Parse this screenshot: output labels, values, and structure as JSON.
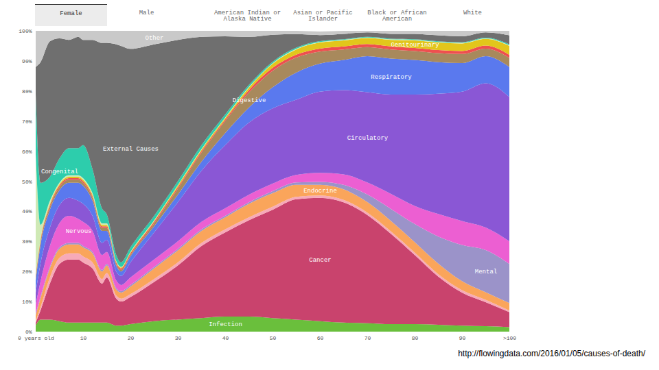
{
  "tabs": {
    "items": [
      "Female",
      "Male",
      "American Indian or Alaska Native",
      "Asian or Pacific Islander",
      "Black or African American",
      "White"
    ],
    "active": "Female"
  },
  "chart_data": {
    "type": "area",
    "stacked": true,
    "x": [
      0,
      1,
      3,
      5,
      7,
      9,
      10,
      12,
      14,
      15,
      17,
      18,
      20,
      25,
      30,
      35,
      40,
      45,
      50,
      55,
      60,
      65,
      70,
      75,
      80,
      85,
      90,
      95,
      100
    ],
    "xlim": [
      0,
      100
    ],
    "xticks": [
      {
        "value": 0,
        "label": "0 years old"
      },
      10,
      20,
      30,
      40,
      50,
      60,
      70,
      80,
      90,
      {
        "value": 100,
        "label": ">100"
      }
    ],
    "ylim": [
      0,
      100
    ],
    "yticks": [
      {
        "value": 0,
        "label": "0%"
      },
      {
        "value": 10,
        "label": "10%"
      },
      {
        "value": 20,
        "label": "20%"
      },
      {
        "value": 30,
        "label": "30%"
      },
      {
        "value": 40,
        "label": "40%"
      },
      {
        "value": 50,
        "label": "50%"
      },
      {
        "value": 60,
        "label": "60%"
      },
      {
        "value": 70,
        "label": "70%"
      },
      {
        "value": 80,
        "label": "80%"
      },
      {
        "value": 90,
        "label": "90%"
      },
      {
        "value": 100,
        "label": "100%"
      }
    ],
    "series": [
      {
        "name": "Infection",
        "color": "#6abf3c",
        "values": [
          2,
          4,
          4,
          3.5,
          3,
          3,
          3,
          3,
          3,
          3,
          2,
          2,
          2.5,
          3.5,
          4,
          4.5,
          5,
          5,
          4.5,
          4,
          3.5,
          3,
          2.8,
          2.5,
          2.5,
          2.3,
          2,
          1.8,
          1.5
        ]
      },
      {
        "name": "Cancer",
        "color": "#c9436d",
        "values": [
          1,
          3,
          12,
          19,
          21,
          21,
          20,
          18,
          13,
          15,
          9,
          8,
          9,
          13,
          18,
          24,
          28,
          32,
          36,
          40,
          41,
          40,
          36,
          30,
          23,
          16,
          11,
          8,
          5
        ]
      },
      {
        "name": null,
        "color": "#f7aab8",
        "values": [
          0.5,
          1,
          2,
          2,
          2,
          2,
          2,
          2,
          1.5,
          1.5,
          1,
          1,
          1,
          1,
          1,
          1,
          1,
          1,
          1,
          0.8,
          0.8,
          0.8,
          0.8,
          0.8,
          0.8,
          0.8,
          0.8,
          0.8,
          0.5
        ]
      },
      {
        "name": "Endocrine",
        "color": "#faa55b",
        "values": [
          2,
          3,
          3,
          3,
          3,
          3,
          3,
          3,
          2.5,
          2.5,
          2,
          2,
          2.5,
          3.5,
          4,
          4,
          4,
          4.5,
          4.5,
          4,
          3.5,
          3.5,
          3.5,
          3.5,
          3.5,
          3.5,
          3,
          2.5,
          2.5
        ]
      },
      {
        "name": "Mental",
        "color": "#9b93c9",
        "values": [
          0.5,
          0.5,
          0.5,
          0.5,
          0.5,
          0.5,
          0.5,
          0.5,
          0.5,
          0.5,
          0.5,
          0.5,
          0.5,
          0.5,
          0.5,
          0.5,
          0.5,
          0.5,
          0.7,
          0.8,
          1,
          1.5,
          2.5,
          4,
          6,
          9,
          12,
          14,
          13
        ]
      },
      {
        "name": "Nervous",
        "color": "#ec5fd2",
        "values": [
          3,
          5,
          7,
          8,
          9,
          8,
          8,
          7,
          5,
          4,
          2.5,
          2,
          2.5,
          2.5,
          2.5,
          2.5,
          2.5,
          2.5,
          2.5,
          2.5,
          3,
          3.5,
          4,
          5,
          6,
          7.5,
          8,
          7.5,
          7.5
        ]
      },
      {
        "name": "Circulatory",
        "color": "#8a57d5",
        "values": [
          4,
          6,
          6,
          6,
          6,
          6,
          6,
          5,
          4,
          4,
          3,
          3,
          5,
          9,
          13,
          17,
          21,
          24,
          25,
          25,
          27,
          28,
          30,
          33,
          37,
          40,
          43,
          48,
          48
        ]
      },
      {
        "name": "Respiratory",
        "color": "#5a79ee",
        "values": [
          4,
          6,
          6,
          5,
          5,
          6,
          6,
          5,
          4,
          3,
          2,
          1.5,
          2,
          2,
          2.5,
          3,
          4,
          5,
          7,
          9,
          9.3,
          10,
          12,
          12,
          11.5,
          10.5,
          9.5,
          9,
          10
        ]
      },
      {
        "name": "Digestive",
        "color": "#a8895c",
        "values": [
          1,
          1,
          1,
          1,
          1,
          1,
          1,
          1,
          1,
          1,
          0.5,
          0.5,
          0.5,
          1,
          2,
          3,
          4,
          5,
          5.5,
          5,
          4,
          3.5,
          3,
          3,
          3,
          3,
          3,
          2.5,
          3
        ]
      },
      {
        "name": null,
        "color": "#ee4f4f",
        "values": [
          0.5,
          0.5,
          0.5,
          0.5,
          0.5,
          0.5,
          0.5,
          0.5,
          0.5,
          0.5,
          0.5,
          0.5,
          0.5,
          0.5,
          0.5,
          0.5,
          0.5,
          0.8,
          1,
          1,
          1,
          1,
          1,
          1,
          1,
          1,
          1,
          1,
          1
        ]
      },
      {
        "name": "Genitourinary",
        "color": "#e2c61b",
        "values": [
          0.5,
          0.5,
          0.5,
          0.5,
          0.5,
          0.5,
          0.5,
          0.5,
          0.5,
          0.5,
          0.3,
          0.3,
          0.3,
          0.3,
          0.5,
          0.5,
          0.5,
          0.8,
          1.3,
          1.7,
          2,
          2,
          2,
          2.2,
          2.5,
          2.5,
          2.5,
          2.2,
          3
        ]
      },
      {
        "name": null,
        "color": "#cfe9b5",
        "values": [
          40,
          5,
          1,
          0.5,
          0.5,
          0.5,
          0.5,
          0.5,
          0.5,
          0.5,
          0.2,
          0.2,
          0.2,
          0.2,
          0.2,
          0.2,
          0.2,
          0.2,
          0.2,
          0.2,
          0.2,
          0.2,
          0.2,
          0.2,
          0.2,
          0.2,
          0.2,
          0.2,
          0.2
        ]
      },
      {
        "name": "Congenital",
        "color": "#2dcdac",
        "values": [
          20,
          14,
          8,
          8,
          9,
          9,
          11,
          8,
          5,
          3,
          2,
          1.5,
          1.5,
          1.5,
          1.3,
          1.3,
          1,
          0.7,
          0.5,
          0.4,
          0.3,
          0.2,
          0.2,
          0.2,
          0.2,
          0.2,
          0.2,
          0.2,
          0.3
        ]
      },
      {
        "name": "External Causes",
        "color": "#6f6f6f",
        "values": [
          9,
          40,
          45,
          40,
          36,
          37,
          35,
          43,
          55,
          57,
          70,
          72,
          66,
          57,
          47,
          36,
          26,
          16,
          9,
          4.5,
          2,
          1.8,
          1.5,
          1.6,
          1.8,
          2,
          2,
          1.8,
          3
        ]
      },
      {
        "name": "Other",
        "color": "#c9c9c9",
        "values": [
          12,
          10.5,
          3.5,
          2.5,
          3,
          2,
          3,
          3,
          4,
          4,
          4.5,
          5,
          6,
          4.5,
          3,
          2,
          1.8,
          2,
          1.3,
          1.1,
          1.2,
          1,
          0.5,
          1,
          1,
          1.5,
          1.8,
          0.5,
          1.5
        ]
      }
    ]
  },
  "caption": "http://flowingdata.com/2016/01/05/causes-of-death/"
}
